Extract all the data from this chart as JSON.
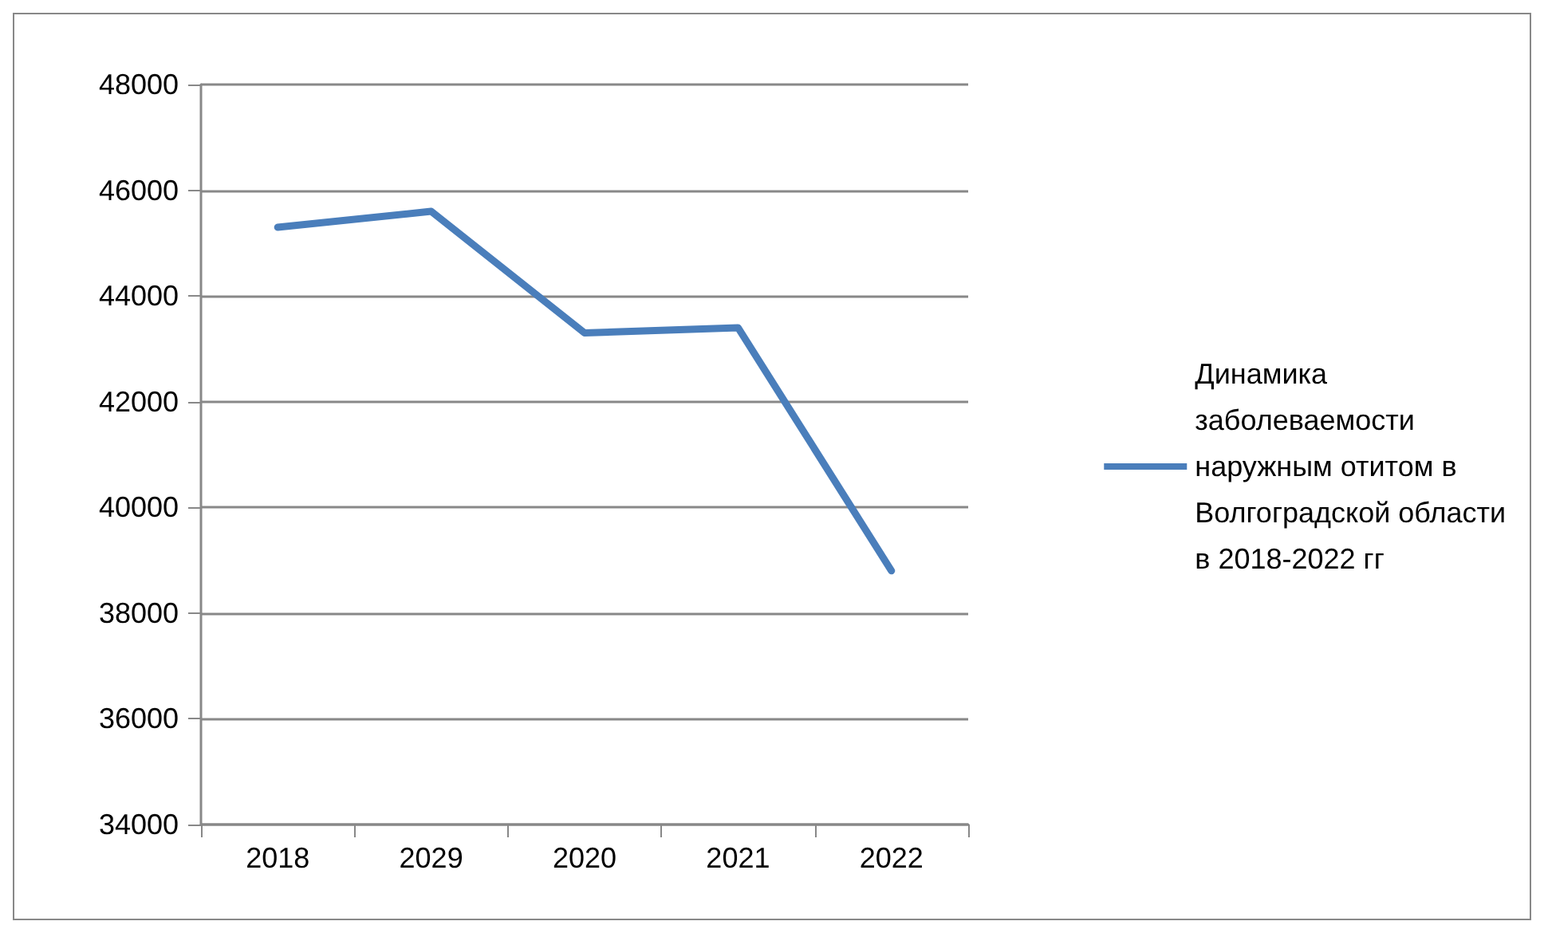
{
  "chart_data": {
    "type": "line",
    "categories": [
      "2018",
      "2029",
      "2020",
      "2021",
      "2022"
    ],
    "series": [
      {
        "name": "Динамика заболеваемости наружным отитом в Волгоградской области в 2018-2022 гг",
        "color": "#4a7ebb",
        "values": [
          45300,
          45600,
          43300,
          43400,
          38800
        ]
      }
    ],
    "ylim": [
      34000,
      48000
    ],
    "yticks": [
      34000,
      36000,
      38000,
      40000,
      42000,
      44000,
      46000,
      48000
    ],
    "grid": "y",
    "legend": "right",
    "marker": "none",
    "line_style": "solid"
  }
}
